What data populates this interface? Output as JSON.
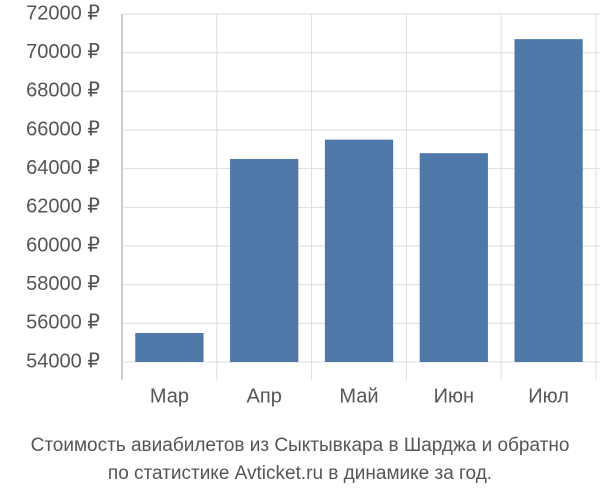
{
  "chart_data": {
    "type": "bar",
    "title": [
      "Стоимость авиабилетов из Сыктывкара в Шарджа и обратно",
      "по статистике Avticket.ru в динамике за год."
    ],
    "categories": [
      "Мар",
      "Апр",
      "Май",
      "Июн",
      "Июл"
    ],
    "values": [
      55500,
      64500,
      65500,
      64800,
      70700
    ],
    "color": "#4d78a8",
    "ylim": [
      54000,
      72000
    ],
    "yticks": [
      {
        "value": 54000,
        "label": "54000 ₽"
      },
      {
        "value": 56000,
        "label": "56000 ₽"
      },
      {
        "value": 58000,
        "label": "58000 ₽"
      },
      {
        "value": 60000,
        "label": "60000 ₽"
      },
      {
        "value": 62000,
        "label": "62000 ₽"
      },
      {
        "value": 64000,
        "label": "64000 ₽"
      },
      {
        "value": 66000,
        "label": "66000 ₽"
      },
      {
        "value": 68000,
        "label": "68000 ₽"
      },
      {
        "value": 70000,
        "label": "70000 ₽"
      },
      {
        "value": 72000,
        "label": "72000 ₽"
      }
    ],
    "grid": true
  }
}
